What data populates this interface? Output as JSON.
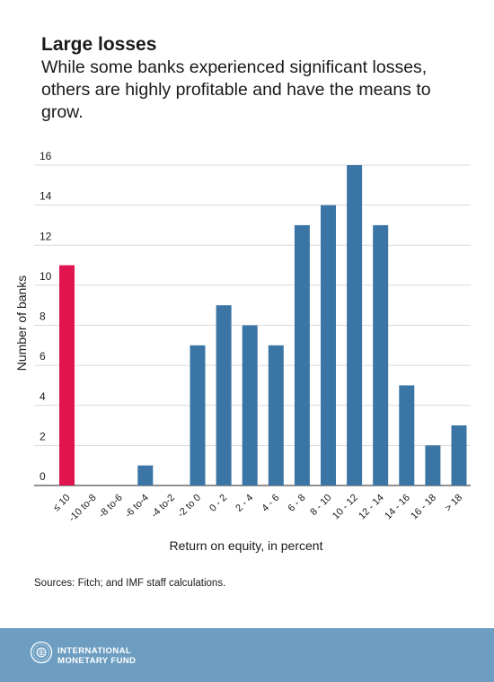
{
  "heading": {
    "title": "Large losses",
    "subtitle": "While some banks experienced significant losses, others are highly profitable and have the means to grow."
  },
  "chart_data": {
    "type": "bar",
    "categories": [
      "≤ 10",
      "-10 to-8",
      "-8 to-6",
      "-6 to-4",
      "-4 to-2",
      "-2 to 0",
      "0 - 2",
      "2 - 4",
      "4 - 6",
      "6 - 8",
      "8 - 10",
      "10 - 12",
      "12 - 14",
      "14 - 16",
      "16 - 18",
      "> 18"
    ],
    "values": [
      11,
      0,
      0,
      1,
      0,
      7,
      9,
      8,
      7,
      13,
      14,
      16,
      13,
      5,
      2,
      3
    ],
    "bar_colors": [
      "#e0144f",
      "#3a75a5",
      "#3a75a5",
      "#3a75a5",
      "#3a75a5",
      "#3a75a5",
      "#3a75a5",
      "#3a75a5",
      "#3a75a5",
      "#3a75a5",
      "#3a75a5",
      "#3a75a5",
      "#3a75a5",
      "#3a75a5",
      "#3a75a5",
      "#3a75a5"
    ],
    "xlabel": "Return on equity, in percent",
    "ylabel": "Number of banks",
    "yticks": [
      0,
      2,
      4,
      6,
      8,
      10,
      12,
      14,
      16
    ],
    "ylim": [
      0,
      16
    ],
    "grid": true
  },
  "source": "Sources: Fitch; and IMF staff calculations.",
  "footer": {
    "org_line1": "INTERNATIONAL",
    "org_line2": "MONETARY FUND",
    "background": "#6d9ec2",
    "logo_icon": "imf-seal-icon"
  }
}
